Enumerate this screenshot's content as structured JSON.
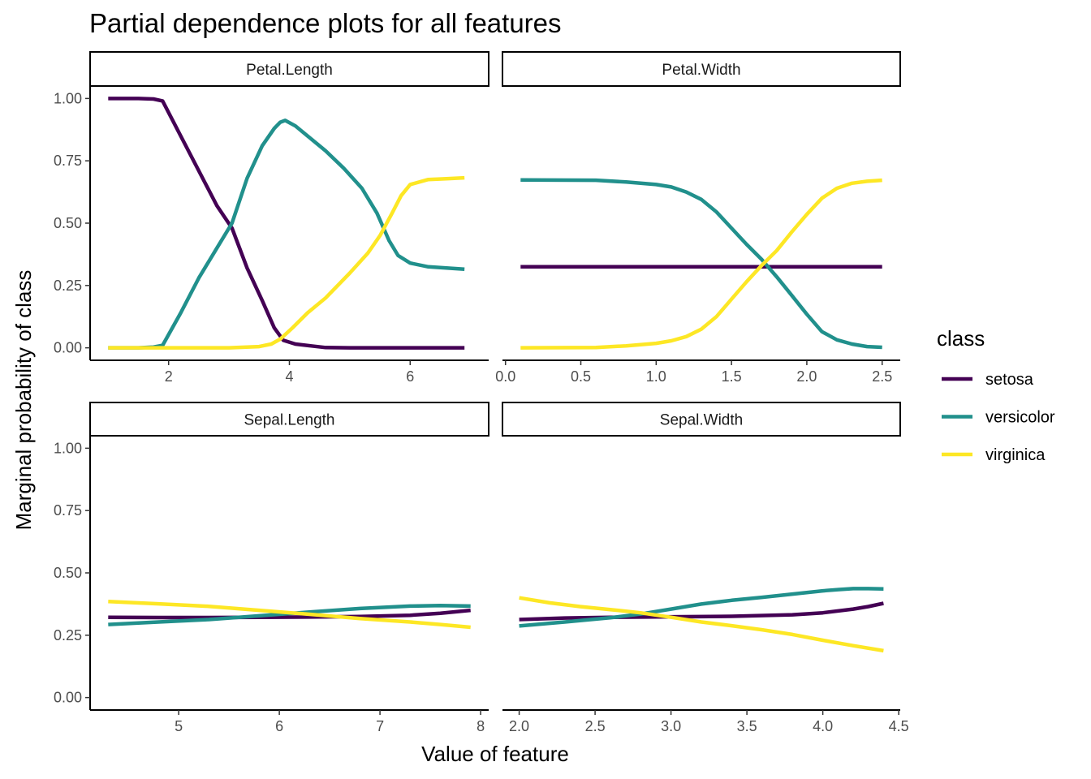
{
  "chart_data": {
    "type": "line",
    "title": "Partial dependence plots for all features",
    "xlabel": "Value of feature",
    "ylabel": "Marginal probability of class",
    "legend": {
      "title": "class",
      "placement": "right",
      "entries": [
        "setosa",
        "versicolor",
        "virginica"
      ]
    },
    "colors": {
      "setosa": "#440154",
      "versicolor": "#21908C",
      "virginica": "#FDE725"
    },
    "y_ticks": [
      "0.00",
      "0.25",
      "0.50",
      "0.75",
      "1.00"
    ],
    "ylim": [
      -0.05,
      1.05
    ],
    "grid": false,
    "panels": [
      {
        "name": "Petal.Length",
        "xlim": [
          0.7,
          7.3
        ],
        "x_ticks": [
          {
            "value": 2,
            "label": "2"
          },
          {
            "value": 4,
            "label": "4"
          },
          {
            "value": 6,
            "label": "6"
          }
        ],
        "show_y_axis": true,
        "series": [
          {
            "name": "setosa",
            "points": [
              [
                1.0,
                1.0
              ],
              [
                1.5,
                1.0
              ],
              [
                1.75,
                0.998
              ],
              [
                1.9,
                0.99
              ],
              [
                2.2,
                0.85
              ],
              [
                2.5,
                0.71
              ],
              [
                2.8,
                0.57
              ],
              [
                3.05,
                0.48
              ],
              [
                3.3,
                0.32
              ],
              [
                3.55,
                0.19
              ],
              [
                3.75,
                0.08
              ],
              [
                3.9,
                0.03
              ],
              [
                4.1,
                0.015
              ],
              [
                4.35,
                0.008
              ],
              [
                4.6,
                0.001
              ],
              [
                5.0,
                0.0
              ],
              [
                6.0,
                0.0
              ],
              [
                6.9,
                0.0
              ]
            ]
          },
          {
            "name": "versicolor",
            "points": [
              [
                1.0,
                0.0
              ],
              [
                1.5,
                0.0
              ],
              [
                1.75,
                0.003
              ],
              [
                1.9,
                0.01
              ],
              [
                2.2,
                0.14
              ],
              [
                2.5,
                0.28
              ],
              [
                2.8,
                0.4
              ],
              [
                3.05,
                0.5
              ],
              [
                3.3,
                0.68
              ],
              [
                3.55,
                0.81
              ],
              [
                3.75,
                0.88
              ],
              [
                3.85,
                0.905
              ],
              [
                3.93,
                0.912
              ],
              [
                4.1,
                0.89
              ],
              [
                4.3,
                0.85
              ],
              [
                4.6,
                0.79
              ],
              [
                4.9,
                0.72
              ],
              [
                5.2,
                0.64
              ],
              [
                5.45,
                0.54
              ],
              [
                5.65,
                0.43
              ],
              [
                5.8,
                0.37
              ],
              [
                6.0,
                0.34
              ],
              [
                6.3,
                0.325
              ],
              [
                6.6,
                0.32
              ],
              [
                6.9,
                0.315
              ]
            ]
          },
          {
            "name": "virginica",
            "points": [
              [
                1.0,
                0.0
              ],
              [
                2.0,
                0.0
              ],
              [
                3.0,
                0.0
              ],
              [
                3.5,
                0.005
              ],
              [
                3.7,
                0.015
              ],
              [
                3.85,
                0.035
              ],
              [
                4.05,
                0.08
              ],
              [
                4.3,
                0.14
              ],
              [
                4.6,
                0.2
              ],
              [
                5.0,
                0.3
              ],
              [
                5.3,
                0.38
              ],
              [
                5.5,
                0.45
              ],
              [
                5.7,
                0.54
              ],
              [
                5.85,
                0.61
              ],
              [
                6.0,
                0.655
              ],
              [
                6.3,
                0.675
              ],
              [
                6.6,
                0.678
              ],
              [
                6.9,
                0.682
              ]
            ]
          }
        ]
      },
      {
        "name": "Petal.Width",
        "xlim": [
          -0.02,
          2.62
        ],
        "x_ticks": [
          {
            "value": 0.0,
            "label": "0.0"
          },
          {
            "value": 0.5,
            "label": "0.5"
          },
          {
            "value": 1.0,
            "label": "1.0"
          },
          {
            "value": 1.5,
            "label": "1.5"
          },
          {
            "value": 2.0,
            "label": "2.0"
          },
          {
            "value": 2.5,
            "label": "2.5"
          }
        ],
        "show_y_axis": false,
        "series": [
          {
            "name": "setosa",
            "points": [
              [
                0.1,
                0.325
              ],
              [
                2.5,
                0.325
              ]
            ]
          },
          {
            "name": "versicolor",
            "points": [
              [
                0.1,
                0.673
              ],
              [
                0.6,
                0.672
              ],
              [
                0.8,
                0.665
              ],
              [
                1.0,
                0.655
              ],
              [
                1.1,
                0.645
              ],
              [
                1.2,
                0.625
              ],
              [
                1.3,
                0.595
              ],
              [
                1.4,
                0.545
              ],
              [
                1.5,
                0.48
              ],
              [
                1.6,
                0.415
              ],
              [
                1.7,
                0.355
              ],
              [
                1.8,
                0.285
              ],
              [
                1.9,
                0.21
              ],
              [
                2.0,
                0.135
              ],
              [
                2.1,
                0.065
              ],
              [
                2.2,
                0.032
              ],
              [
                2.3,
                0.015
              ],
              [
                2.4,
                0.005
              ],
              [
                2.5,
                0.002
              ]
            ]
          },
          {
            "name": "virginica",
            "points": [
              [
                0.1,
                0.0
              ],
              [
                0.6,
                0.001
              ],
              [
                0.8,
                0.008
              ],
              [
                1.0,
                0.018
              ],
              [
                1.1,
                0.028
              ],
              [
                1.2,
                0.045
              ],
              [
                1.3,
                0.075
              ],
              [
                1.4,
                0.125
              ],
              [
                1.5,
                0.195
              ],
              [
                1.6,
                0.265
              ],
              [
                1.7,
                0.33
              ],
              [
                1.8,
                0.39
              ],
              [
                1.9,
                0.465
              ],
              [
                2.0,
                0.535
              ],
              [
                2.1,
                0.6
              ],
              [
                2.2,
                0.64
              ],
              [
                2.3,
                0.66
              ],
              [
                2.4,
                0.668
              ],
              [
                2.5,
                0.672
              ]
            ]
          }
        ]
      },
      {
        "name": "Sepal.Length",
        "xlim": [
          4.12,
          8.08
        ],
        "x_ticks": [
          {
            "value": 5,
            "label": "5"
          },
          {
            "value": 6,
            "label": "6"
          },
          {
            "value": 7,
            "label": "7"
          },
          {
            "value": 8,
            "label": "8"
          }
        ],
        "show_y_axis": true,
        "series": [
          {
            "name": "setosa",
            "points": [
              [
                4.3,
                0.322
              ],
              [
                4.8,
                0.321
              ],
              [
                5.3,
                0.321
              ],
              [
                5.8,
                0.322
              ],
              [
                6.3,
                0.323
              ],
              [
                6.8,
                0.325
              ],
              [
                7.3,
                0.33
              ],
              [
                7.6,
                0.338
              ],
              [
                7.9,
                0.35
              ]
            ]
          },
          {
            "name": "versicolor",
            "points": [
              [
                4.3,
                0.293
              ],
              [
                4.8,
                0.303
              ],
              [
                5.3,
                0.313
              ],
              [
                5.8,
                0.328
              ],
              [
                6.3,
                0.343
              ],
              [
                6.8,
                0.357
              ],
              [
                7.3,
                0.367
              ],
              [
                7.6,
                0.369
              ],
              [
                7.9,
                0.367
              ]
            ]
          },
          {
            "name": "virginica",
            "points": [
              [
                4.3,
                0.385
              ],
              [
                4.8,
                0.376
              ],
              [
                5.3,
                0.366
              ],
              [
                5.8,
                0.35
              ],
              [
                6.3,
                0.334
              ],
              [
                6.8,
                0.317
              ],
              [
                7.3,
                0.303
              ],
              [
                7.6,
                0.293
              ],
              [
                7.9,
                0.282
              ]
            ]
          }
        ]
      },
      {
        "name": "Sepal.Width",
        "xlim": [
          1.89,
          4.51
        ],
        "x_ticks": [
          {
            "value": 2.0,
            "label": "2.0"
          },
          {
            "value": 2.5,
            "label": "2.5"
          },
          {
            "value": 3.0,
            "label": "3.0"
          },
          {
            "value": 3.5,
            "label": "3.5"
          },
          {
            "value": 4.0,
            "label": "4.0"
          },
          {
            "value": 4.5,
            "label": "4.5"
          }
        ],
        "show_y_axis": false,
        "series": [
          {
            "name": "setosa",
            "points": [
              [
                2.0,
                0.313
              ],
              [
                2.3,
                0.319
              ],
              [
                2.6,
                0.322
              ],
              [
                3.0,
                0.324
              ],
              [
                3.4,
                0.326
              ],
              [
                3.8,
                0.332
              ],
              [
                4.0,
                0.34
              ],
              [
                4.2,
                0.355
              ],
              [
                4.3,
                0.365
              ],
              [
                4.4,
                0.378
              ]
            ]
          },
          {
            "name": "versicolor",
            "points": [
              [
                2.0,
                0.287
              ],
              [
                2.3,
                0.303
              ],
              [
                2.6,
                0.32
              ],
              [
                2.8,
                0.335
              ],
              [
                3.0,
                0.355
              ],
              [
                3.2,
                0.375
              ],
              [
                3.4,
                0.39
              ],
              [
                3.6,
                0.402
              ],
              [
                3.8,
                0.415
              ],
              [
                4.0,
                0.428
              ],
              [
                4.1,
                0.433
              ],
              [
                4.2,
                0.437
              ],
              [
                4.3,
                0.437
              ],
              [
                4.4,
                0.436
              ]
            ]
          },
          {
            "name": "virginica",
            "points": [
              [
                2.0,
                0.4
              ],
              [
                2.2,
                0.38
              ],
              [
                2.4,
                0.365
              ],
              [
                2.6,
                0.353
              ],
              [
                2.8,
                0.34
              ],
              [
                3.0,
                0.322
              ],
              [
                3.2,
                0.303
              ],
              [
                3.4,
                0.288
              ],
              [
                3.6,
                0.272
              ],
              [
                3.8,
                0.253
              ],
              [
                4.0,
                0.23
              ],
              [
                4.2,
                0.208
              ],
              [
                4.4,
                0.188
              ]
            ]
          }
        ]
      }
    ]
  }
}
